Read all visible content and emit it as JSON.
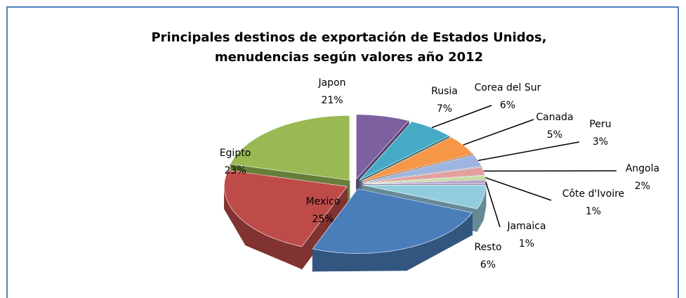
{
  "chart_data": {
    "type": "pie3d",
    "title": [
      "Principales destinos de exportación de Estados  Unidos,",
      "menudencias  según valores año 2012"
    ],
    "categories": [
      "Mexico",
      "Egipto",
      "Japon",
      "Rusia",
      "Corea del Sur",
      "Canada",
      "Peru",
      "Angola",
      "Côte d'Ivoire",
      "Jamaica",
      "Resto"
    ],
    "values": [
      25,
      23,
      21,
      7,
      6,
      5,
      3,
      2,
      1,
      1,
      6
    ],
    "value_labels": [
      "25%",
      "23%",
      "21%",
      "7%",
      "6%",
      "5%",
      "3%",
      "2%",
      "1%",
      "1%",
      "6%"
    ],
    "colors": [
      "#4a7ebb",
      "#be4b48",
      "#98b954",
      "#7d60a0",
      "#46aac5",
      "#f79646",
      "#9fb4e0",
      "#e3a09e",
      "#c8dca0",
      "#b8a6cc",
      "#93cddd"
    ]
  }
}
